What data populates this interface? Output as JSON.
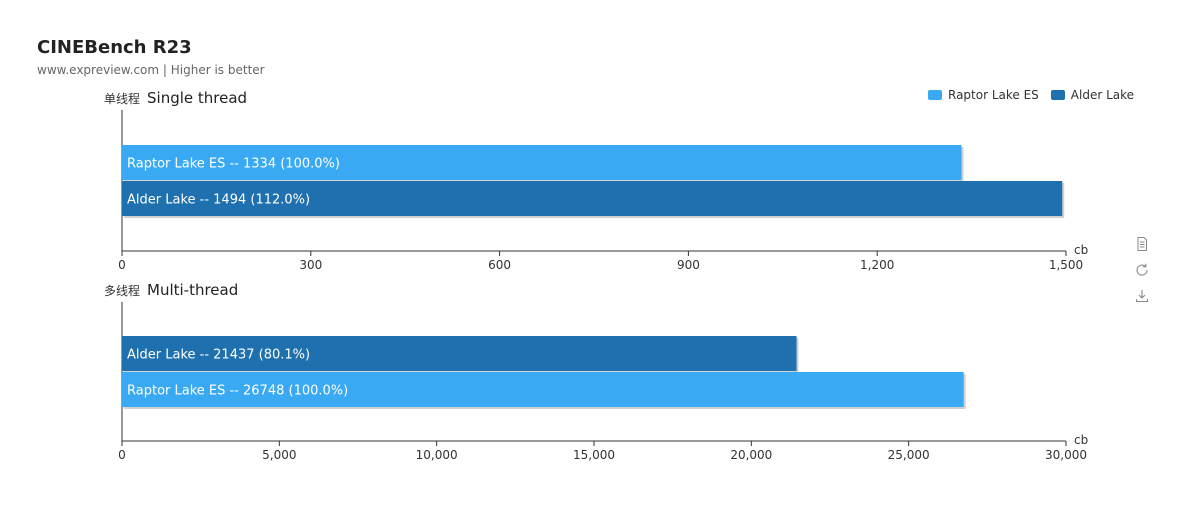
{
  "title": "CINEBench R23",
  "subtitle": "www.expreview.com | Higher is better",
  "legend": [
    {
      "name": "Raptor Lake ES",
      "color": "#3aa9f4"
    },
    {
      "name": "Alder Lake",
      "color": "#1f70ae"
    }
  ],
  "toolbox": [
    {
      "icon": "data-view-icon"
    },
    {
      "icon": "restore-icon"
    },
    {
      "icon": "save-image-icon"
    }
  ],
  "chart_data": [
    {
      "type": "bar",
      "orientation": "horizontal",
      "title_cn": "单线程",
      "title": "Single thread",
      "unit": "cb",
      "xlim": [
        0,
        1500
      ],
      "ticks": [
        "0",
        "300",
        "600",
        "900",
        "1,200",
        "1,500"
      ],
      "tick_values": [
        0,
        300,
        600,
        900,
        1200,
        1500
      ],
      "bars": [
        {
          "name": "Raptor Lake ES",
          "value": 1334,
          "label": "Raptor Lake ES  --  1334 (100.0%)",
          "color": "#3aa9f4"
        },
        {
          "name": "Alder Lake",
          "value": 1494,
          "label": "Alder Lake  --  1494 (112.0%)",
          "color": "#1f70ae"
        }
      ]
    },
    {
      "type": "bar",
      "orientation": "horizontal",
      "title_cn": "多线程",
      "title": "Multi-thread",
      "unit": "cb",
      "xlim": [
        0,
        30000
      ],
      "ticks": [
        "0",
        "5,000",
        "10,000",
        "15,000",
        "20,000",
        "25,000",
        "30,000"
      ],
      "tick_values": [
        0,
        5000,
        10000,
        15000,
        20000,
        25000,
        30000
      ],
      "bars": [
        {
          "name": "Alder Lake",
          "value": 21437,
          "label": "Alder Lake  --  21437 (80.1%)",
          "color": "#1f70ae"
        },
        {
          "name": "Raptor Lake ES",
          "value": 26748,
          "label": "Raptor Lake ES  --  26748 (100.0%)",
          "color": "#3aa9f4"
        }
      ]
    }
  ]
}
